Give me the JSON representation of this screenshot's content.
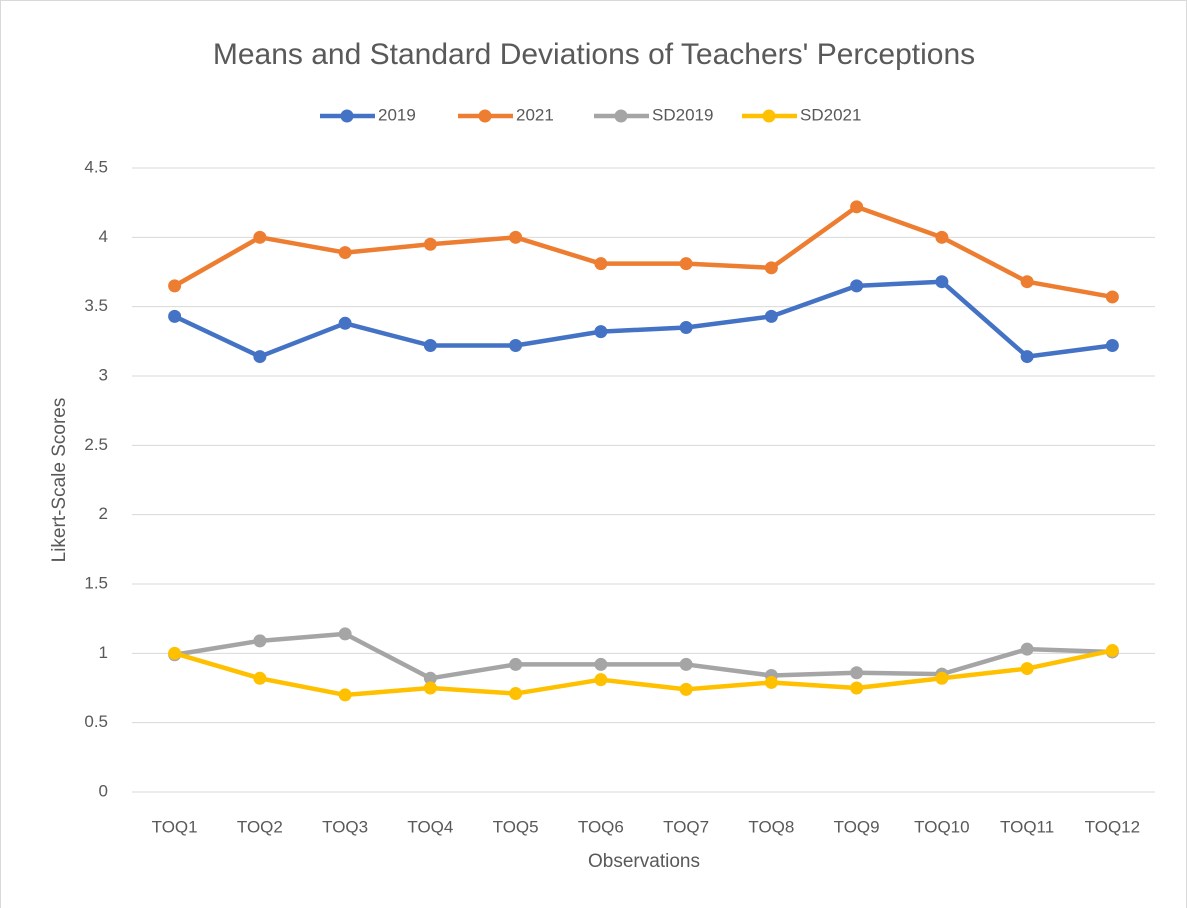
{
  "chart_data": {
    "type": "line",
    "title": "Means and Standard Deviations of Teachers' Perceptions",
    "x_label": "Observations",
    "y_label": "Likert-Scale Scores",
    "categories": [
      "TOQ1",
      "TOQ2",
      "TOQ3",
      "TOQ4",
      "TOQ5",
      "TOQ6",
      "TOQ7",
      "TOQ8",
      "TOQ9",
      "TOQ10",
      "TOQ11",
      "TOQ12"
    ],
    "series": [
      {
        "name": "2019",
        "color": "#4472c4",
        "values": [
          3.43,
          3.14,
          3.38,
          3.22,
          3.22,
          3.32,
          3.35,
          3.43,
          3.65,
          3.68,
          3.14,
          3.22
        ]
      },
      {
        "name": "2021",
        "color": "#ed7d31",
        "values": [
          3.65,
          4.0,
          3.89,
          3.95,
          4.0,
          3.81,
          3.81,
          3.78,
          4.22,
          4.0,
          3.68,
          3.57
        ]
      },
      {
        "name": "SD2019",
        "color": "#a5a5a5",
        "values": [
          0.99,
          1.09,
          1.14,
          0.82,
          0.92,
          0.92,
          0.92,
          0.84,
          0.86,
          0.85,
          1.03,
          1.01
        ]
      },
      {
        "name": "SD2021",
        "color": "#ffc000",
        "values": [
          1.0,
          0.82,
          0.7,
          0.75,
          0.71,
          0.81,
          0.74,
          0.79,
          0.75,
          0.82,
          0.89,
          1.02
        ]
      }
    ],
    "ylim": [
      0,
      4.5
    ],
    "yticks": [
      0,
      0.5,
      1,
      1.5,
      2,
      2.5,
      3,
      3.5,
      4,
      4.5
    ],
    "grid": true,
    "legend": "top"
  }
}
